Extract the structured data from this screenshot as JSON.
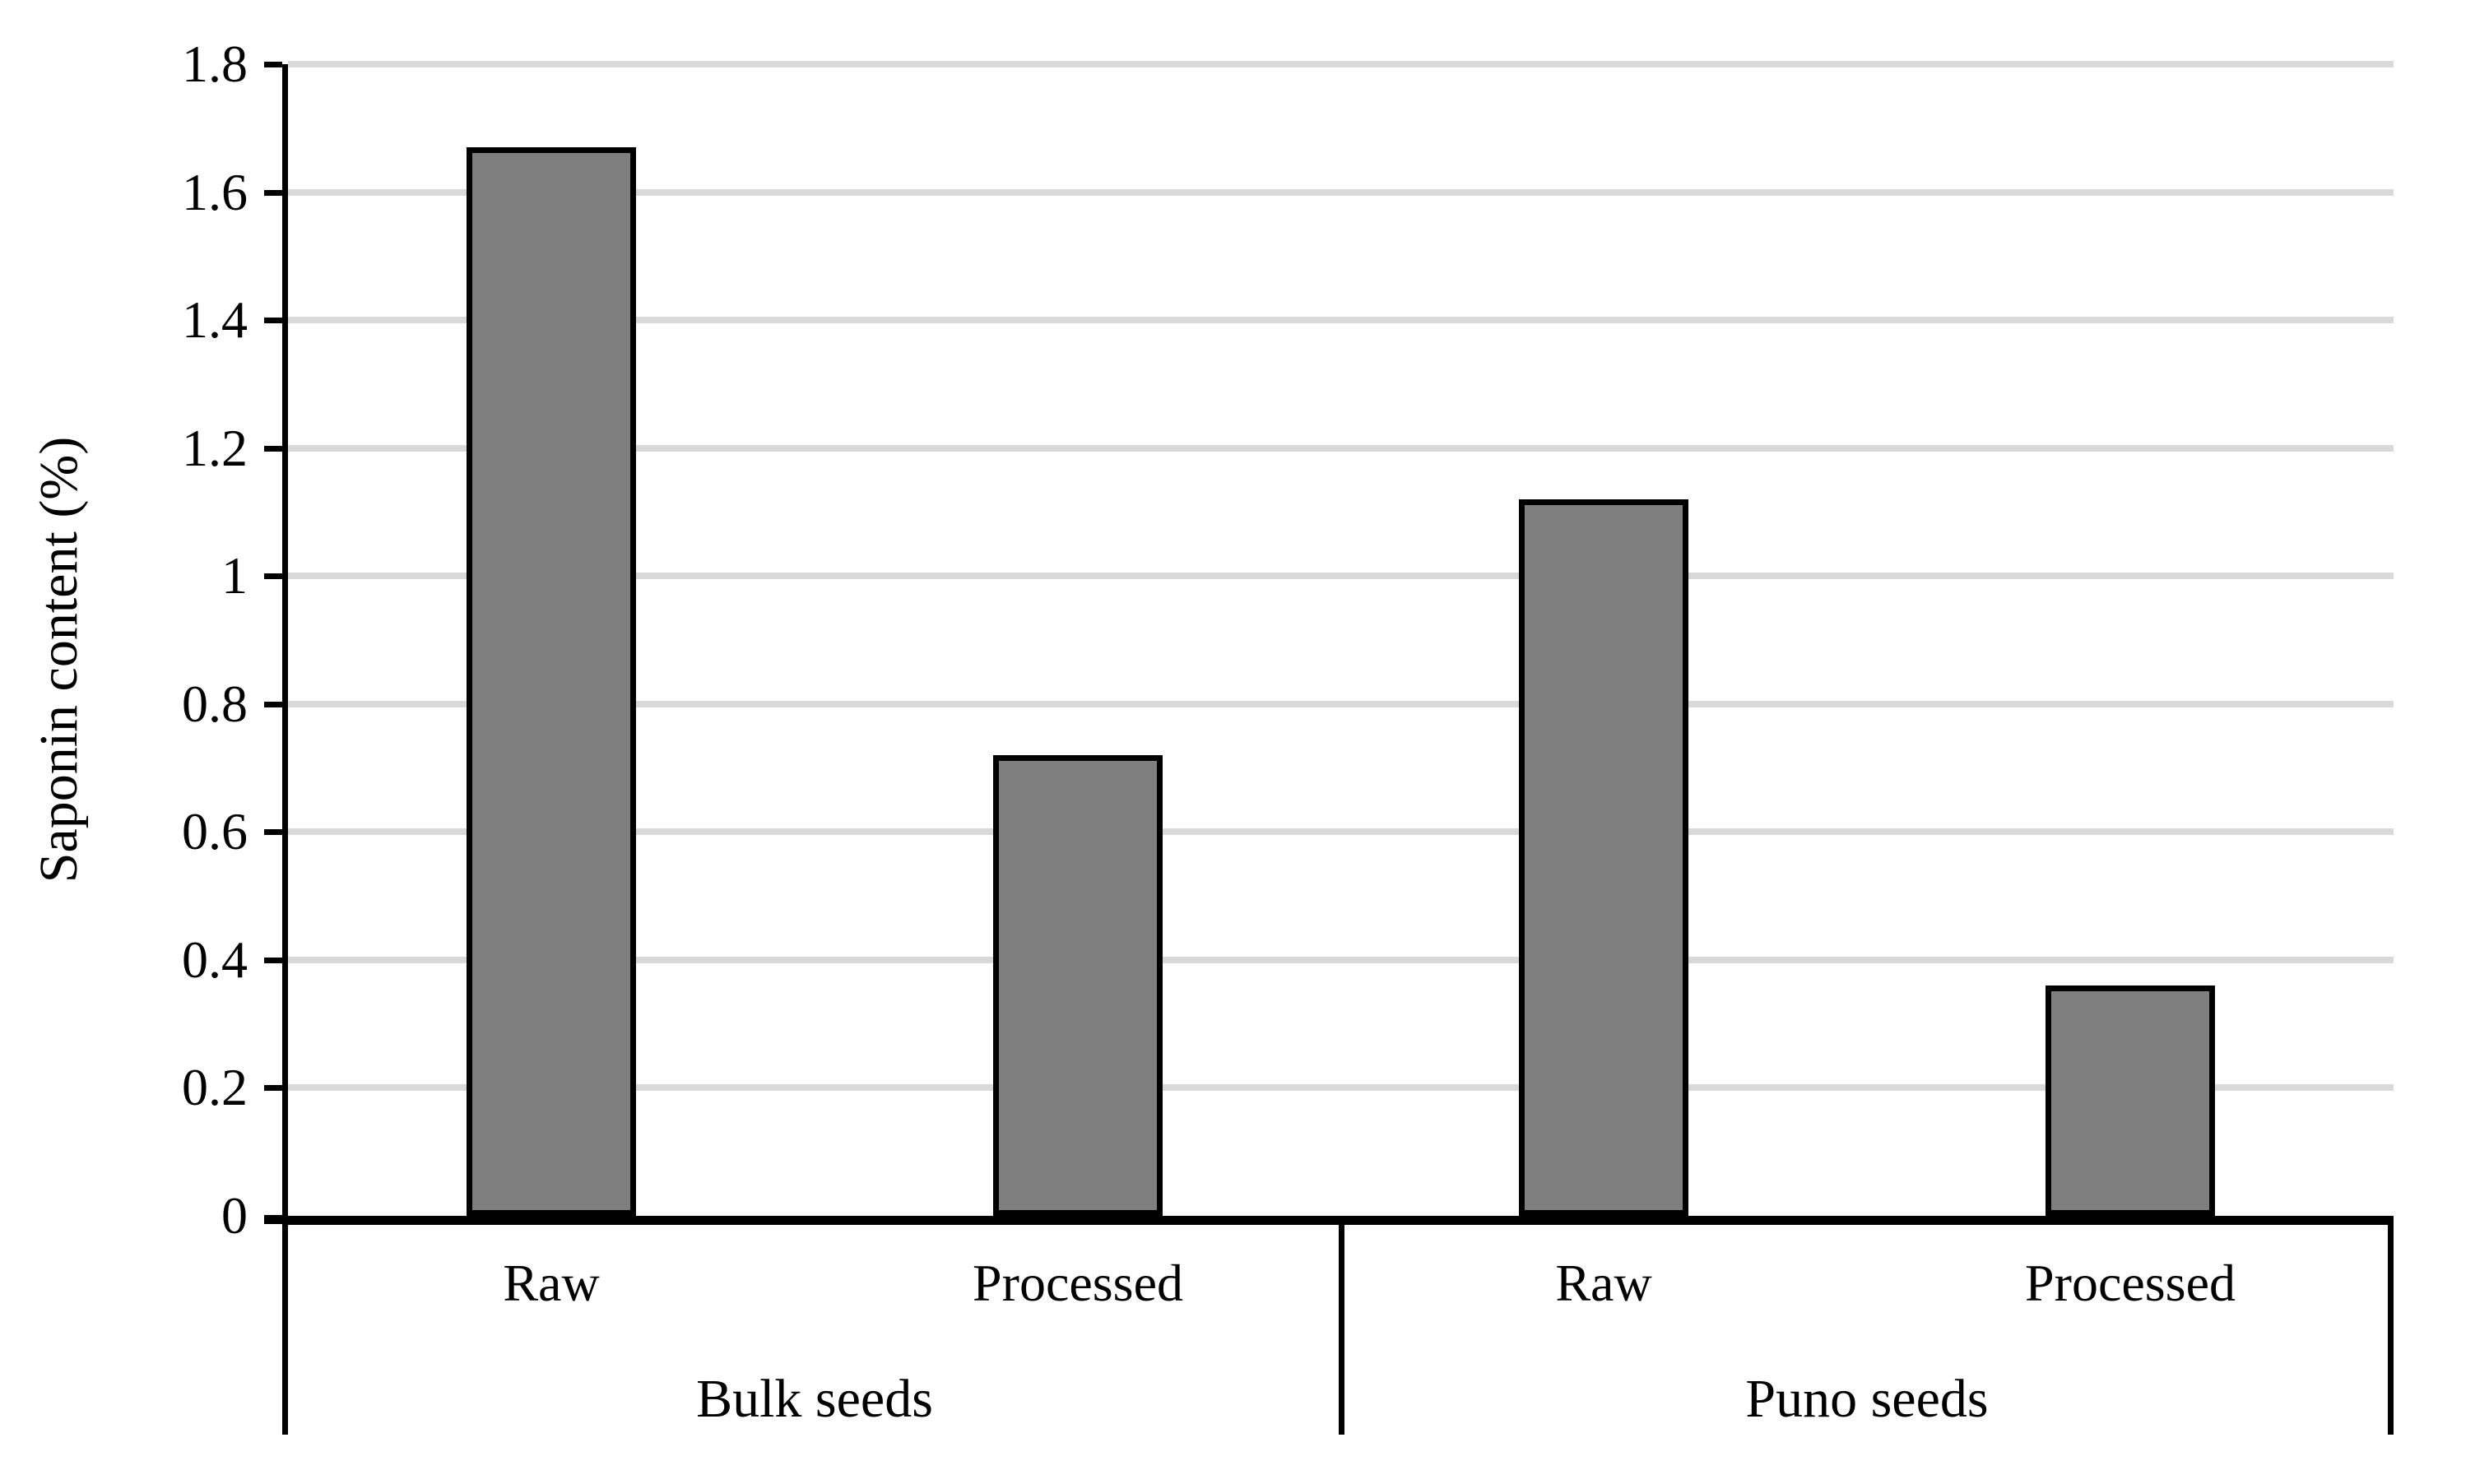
{
  "chart_data": {
    "type": "bar",
    "title": "",
    "ylabel": "Saponin content (%)",
    "xlabel": "",
    "ylim": [
      0,
      1.8
    ],
    "ytick_step": 0.2,
    "yticks": [
      "1.8",
      "1.6",
      "1.4",
      "1.2",
      "1",
      "0.8",
      "0.6",
      "0.4",
      "0.2",
      "0"
    ],
    "grid": true,
    "legend": "none",
    "groups": [
      {
        "label": "Bulk seeds",
        "categories": [
          "Raw",
          "Processed"
        ],
        "values": [
          1.67,
          0.72
        ]
      },
      {
        "label": "Puno seeds",
        "categories": [
          "Raw",
          "Processed"
        ],
        "values": [
          1.12,
          0.36
        ]
      }
    ],
    "colors": {
      "bar_fill": "#7f7f7f",
      "bar_border": "#000000",
      "gridline": "#d9d9d9",
      "axis": "#000000",
      "text": "#000000",
      "background": "#ffffff"
    }
  }
}
